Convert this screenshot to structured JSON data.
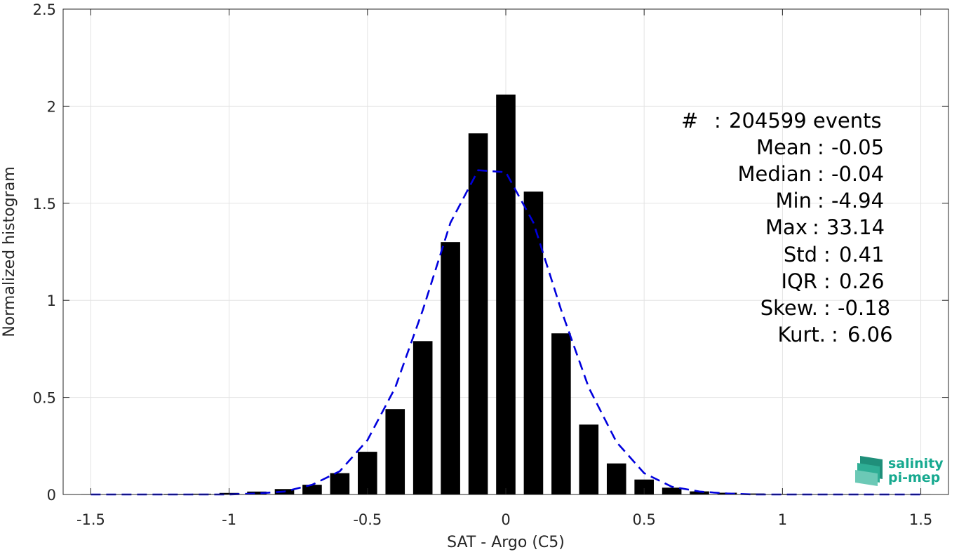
{
  "chart_data": {
    "type": "bar",
    "xlabel": "SAT - Argo (C5)",
    "ylabel": "Normalized histogram",
    "xlim": [
      -1.6,
      1.6
    ],
    "ylim": [
      0,
      2.5
    ],
    "xticks": [
      "-1.5",
      "-1",
      "-0.5",
      "0",
      "0.5",
      "1",
      "1.5"
    ],
    "yticks": [
      "0",
      "0.5",
      "1",
      "1.5",
      "2",
      "2.5"
    ],
    "grid": true,
    "bar_color": "#000000",
    "series": [
      {
        "type": "bar",
        "x": [
          -1.5,
          -1.4,
          -1.3,
          -1.2,
          -1.1,
          -1.0,
          -0.9,
          -0.8,
          -0.7,
          -0.6,
          -0.5,
          -0.4,
          -0.3,
          -0.2,
          -0.1,
          0.0,
          0.1,
          0.2,
          0.3,
          0.4,
          0.5,
          0.6,
          0.7,
          0.8,
          0.9,
          1.0,
          1.1,
          1.2,
          1.3,
          1.4,
          1.5
        ],
        "values": [
          0.002,
          0.002,
          0.002,
          0.003,
          0.004,
          0.008,
          0.015,
          0.028,
          0.05,
          0.11,
          0.22,
          0.44,
          0.79,
          1.3,
          1.86,
          2.06,
          1.56,
          0.83,
          0.36,
          0.16,
          0.077,
          0.035,
          0.016,
          0.009,
          0.005,
          0.003,
          0.002,
          0.002,
          0.002,
          0.002,
          0.002
        ]
      },
      {
        "type": "line",
        "style": "dashed",
        "color": "#0000dd",
        "x": [
          -1.5,
          -1.4,
          -1.3,
          -1.2,
          -1.1,
          -1.0,
          -0.9,
          -0.8,
          -0.7,
          -0.6,
          -0.5,
          -0.4,
          -0.3,
          -0.2,
          -0.1,
          0.0,
          0.1,
          0.2,
          0.3,
          0.4,
          0.5,
          0.6,
          0.7,
          0.8,
          0.9,
          1.0,
          1.1,
          1.2,
          1.3,
          1.4,
          1.5
        ],
        "values": [
          0.0,
          0.0,
          0.0,
          0.0,
          0.0,
          0.0,
          0.005,
          0.015,
          0.05,
          0.12,
          0.28,
          0.55,
          0.95,
          1.4,
          1.67,
          1.66,
          1.4,
          0.95,
          0.55,
          0.27,
          0.11,
          0.04,
          0.015,
          0.005,
          0.0,
          0.0,
          0.0,
          0.0,
          0.0,
          0.0,
          0.0
        ]
      }
    ]
  },
  "stats": [
    {
      "label": "#",
      "sep": ":",
      "value": "204599 events"
    },
    {
      "label": "Mean",
      "sep": ":",
      "value": "-0.05"
    },
    {
      "label": "Median",
      "sep": ":",
      "value": "-0.04"
    },
    {
      "label": "Min",
      "sep": ":",
      "value": "-4.94"
    },
    {
      "label": "Max",
      "sep": ":",
      "value": "33.14"
    },
    {
      "label": "Std",
      "sep": ":",
      "value": "0.41"
    },
    {
      "label": "IQR",
      "sep": ":",
      "value": "0.26"
    },
    {
      "label": "Skew.",
      "sep": ":",
      "value": "-0.18"
    },
    {
      "label": "Kurt.",
      "sep": ":",
      "value": "6.06"
    }
  ],
  "logo": {
    "line1": "salinity",
    "line2": "pi-mep",
    "color": "#16a98f"
  }
}
